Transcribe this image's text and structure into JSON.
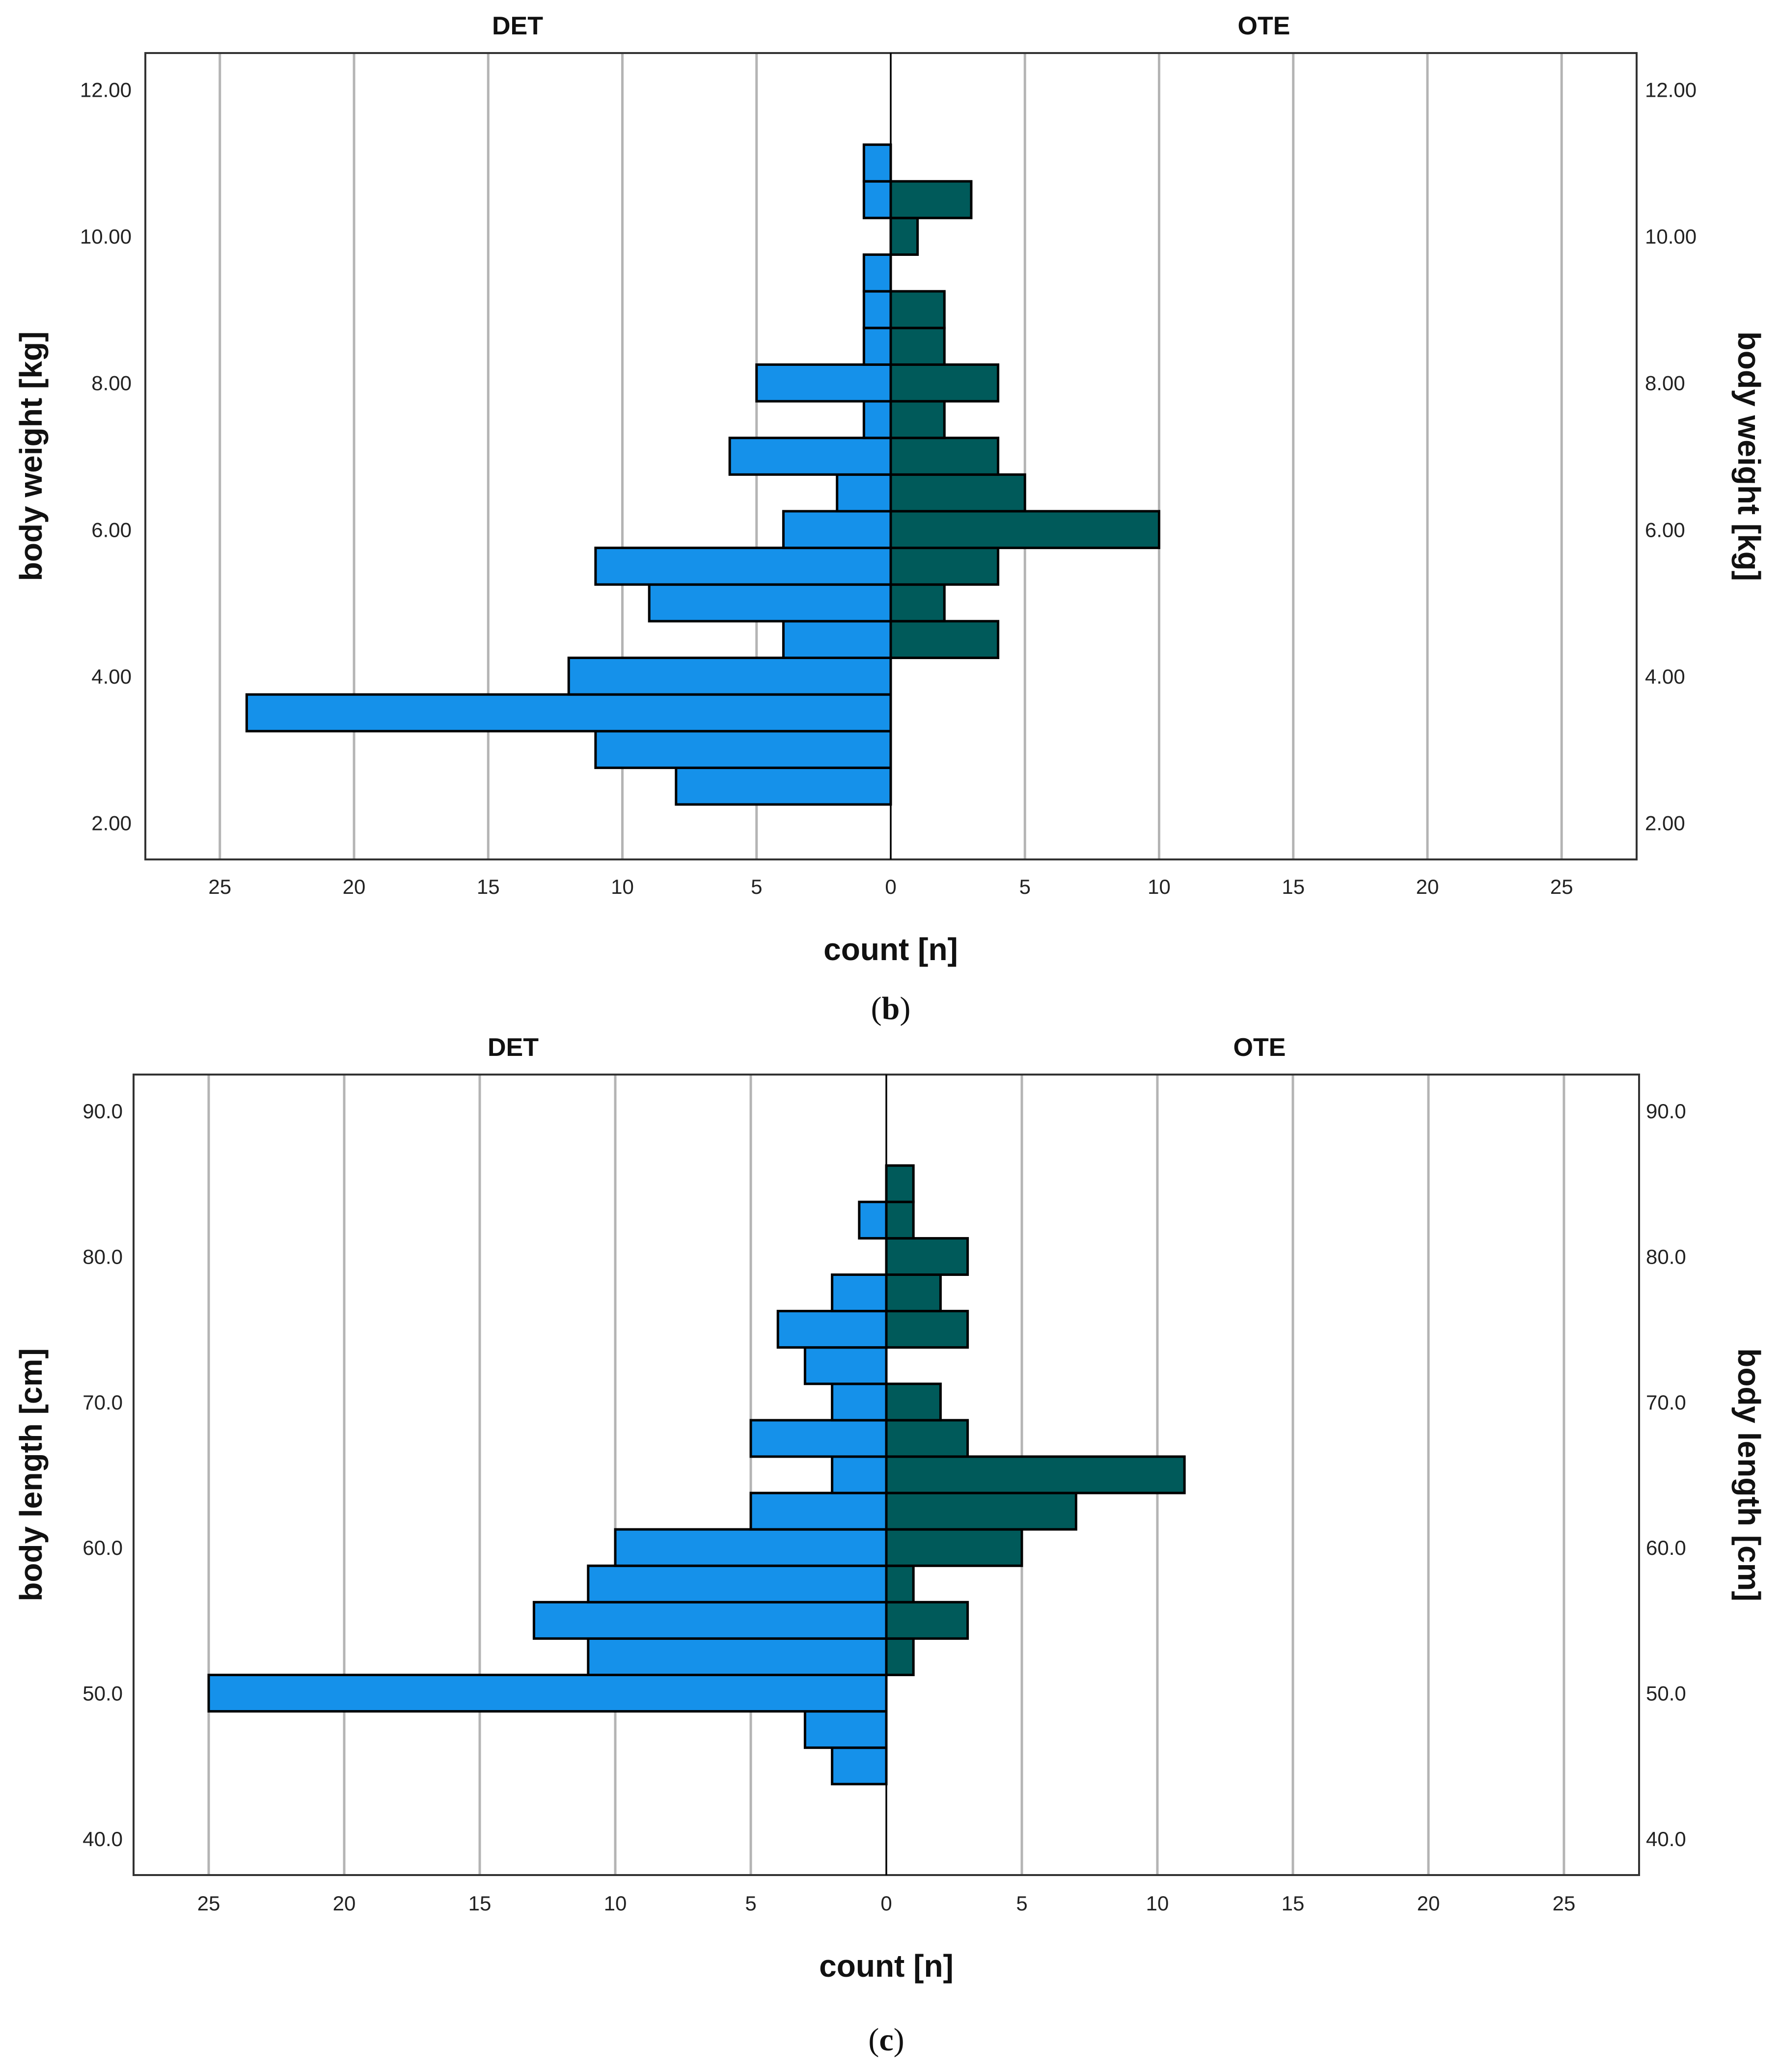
{
  "colors": {
    "det": "#1591ea",
    "ote": "#005a5a"
  },
  "chart_data": [
    {
      "type": "bar",
      "orientation": "horizontal-population-pyramid",
      "caption": {
        "letter": "b",
        "open": "(",
        "close": ")"
      },
      "groups": [
        "DET",
        "OTE"
      ],
      "xlabel": "count [n]",
      "ylabel": "body weight [kg]",
      "xlim": [
        0,
        25
      ],
      "xticks": [
        "25",
        "20",
        "15",
        "10",
        "5",
        "0",
        "5",
        "10",
        "15",
        "20",
        "25"
      ],
      "ylim": [
        1.5,
        12.5
      ],
      "yticks": [
        {
          "value": 2,
          "label": "2.00"
        },
        {
          "value": 4,
          "label": "4.00"
        },
        {
          "value": 6,
          "label": "6.00"
        },
        {
          "value": 8,
          "label": "8.00"
        },
        {
          "value": 10,
          "label": "10.00"
        },
        {
          "value": 12,
          "label": "12.00"
        }
      ],
      "bin_width": 0.5,
      "bins": [
        2.5,
        3,
        3.5,
        4,
        4.5,
        5,
        5.5,
        6,
        6.5,
        7,
        7.5,
        8,
        8.5,
        9,
        9.5,
        10,
        10.5,
        11
      ],
      "series": [
        {
          "name": "DET",
          "values": [
            8,
            11,
            24,
            12,
            4,
            9,
            11,
            4,
            2,
            6,
            1,
            5,
            1,
            1,
            1,
            0,
            1,
            1
          ]
        },
        {
          "name": "OTE",
          "values": [
            0,
            0,
            0,
            0,
            4,
            2,
            4,
            10,
            5,
            4,
            2,
            4,
            2,
            2,
            0,
            1,
            3,
            0
          ]
        }
      ],
      "grid": true
    },
    {
      "type": "bar",
      "orientation": "horizontal-population-pyramid",
      "caption": {
        "letter": "c",
        "open": "(",
        "close": ")"
      },
      "groups": [
        "DET",
        "OTE"
      ],
      "xlabel": "count [n]",
      "ylabel": "body length [cm]",
      "xlim": [
        0,
        25
      ],
      "xticks": [
        "25",
        "20",
        "15",
        "10",
        "5",
        "0",
        "5",
        "10",
        "15",
        "20",
        "25"
      ],
      "ylim": [
        37.5,
        92.5
      ],
      "yticks": [
        {
          "value": 40,
          "label": "40.0"
        },
        {
          "value": 50,
          "label": "50.0"
        },
        {
          "value": 60,
          "label": "60.0"
        },
        {
          "value": 70,
          "label": "70.0"
        },
        {
          "value": 80,
          "label": "80.0"
        },
        {
          "value": 90,
          "label": "90.0"
        }
      ],
      "bin_width": 2.5,
      "bins": [
        45,
        47.5,
        50,
        52.5,
        55,
        57.5,
        60,
        62.5,
        65,
        67.5,
        70,
        72.5,
        75,
        77.5,
        80,
        82.5,
        85
      ],
      "series": [
        {
          "name": "DET",
          "values": [
            2,
            3,
            25,
            11,
            13,
            11,
            10,
            5,
            2,
            5,
            2,
            3,
            4,
            2,
            0,
            1,
            0
          ]
        },
        {
          "name": "OTE",
          "values": [
            0,
            0,
            0,
            1,
            3,
            1,
            5,
            7,
            11,
            3,
            2,
            0,
            3,
            2,
            3,
            1,
            1
          ]
        }
      ],
      "grid": true
    }
  ]
}
